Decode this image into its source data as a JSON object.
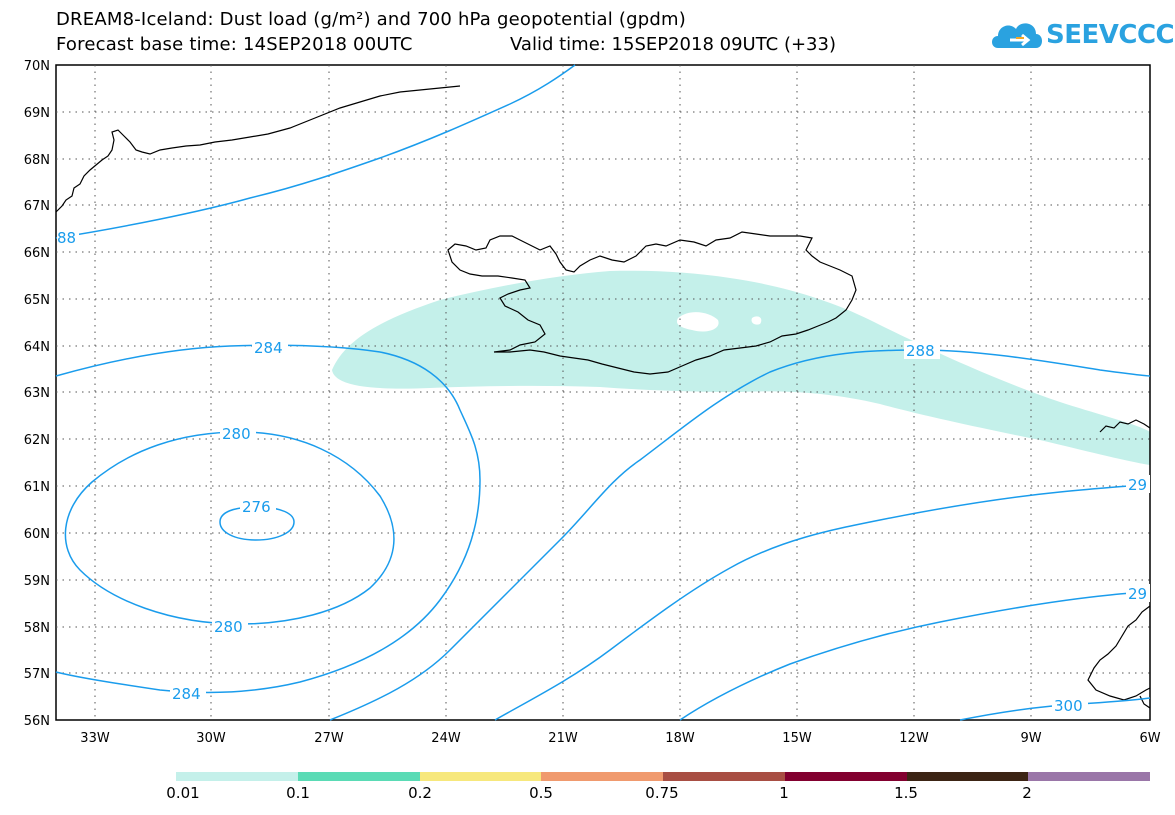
{
  "header": {
    "title_line1": "DREAM8-Iceland: Dust load (g/m²) and 700 hPa geopotential (gpdm)",
    "title_line2_base": "Forecast base time: 14SEP2018 00UTC",
    "title_line2_valid": "Valid time: 15SEP2018 09UTC (+33)"
  },
  "logo": {
    "text": "SEEVCCC",
    "icon": "cloud-icon",
    "color": "#2aa2e0"
  },
  "map": {
    "lat_labels": [
      "70N",
      "69N",
      "68N",
      "67N",
      "66N",
      "65N",
      "64N",
      "63N",
      "62N",
      "61N",
      "60N",
      "59N",
      "58N",
      "57N",
      "56N"
    ],
    "lon_labels": [
      "33W",
      "30W",
      "27W",
      "24W",
      "21W",
      "18W",
      "15W",
      "12W",
      "9W",
      "6W"
    ],
    "contour_color": "#1a9cec",
    "dust_fill_color": "#c4f0ea",
    "contour_labels": [
      "284",
      "280",
      "276",
      "280",
      "284",
      "288",
      "29",
      "29",
      "300",
      "88"
    ]
  },
  "legend": {
    "colors": [
      "#c4f0ea",
      "#5adbb5",
      "#f7e87c",
      "#f09a6e",
      "#a84e43",
      "#82002f",
      "#3c2414",
      "#9a76a8"
    ],
    "ticks": [
      "0.01",
      "0.1",
      "0.2",
      "0.5",
      "0.75",
      "1",
      "1.5",
      "2"
    ]
  }
}
